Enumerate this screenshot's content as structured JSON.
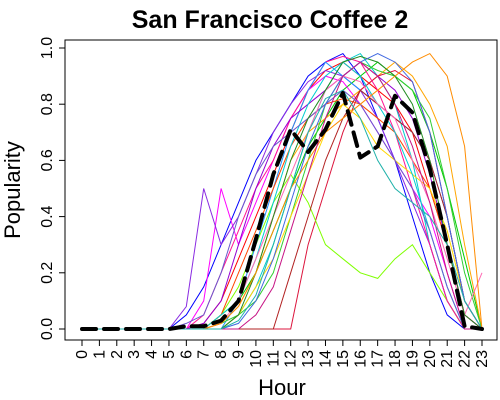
{
  "chart_data": {
    "type": "line",
    "title": "San Francisco Coffee 2",
    "xlabel": "Hour",
    "ylabel": "Popularity",
    "xlim": [
      0,
      23
    ],
    "ylim": [
      0,
      1
    ],
    "x_ticks": [
      "0",
      "1",
      "2",
      "3",
      "4",
      "5",
      "6",
      "7",
      "8",
      "9",
      "10",
      "11",
      "12",
      "13",
      "14",
      "15",
      "16",
      "17",
      "18",
      "19",
      "20",
      "21",
      "22",
      "23"
    ],
    "y_ticks": [
      "0.0",
      "0.2",
      "0.4",
      "0.6",
      "0.8",
      "1.0"
    ],
    "grid": false,
    "legend": "none",
    "x": [
      0,
      1,
      2,
      3,
      4,
      5,
      6,
      7,
      8,
      9,
      10,
      11,
      12,
      13,
      14,
      15,
      16,
      17,
      18,
      19,
      20,
      21,
      22,
      23
    ],
    "mean_series": {
      "style": "dashed",
      "color": "#000000",
      "values": [
        0,
        0,
        0,
        0,
        0,
        0,
        0.01,
        0.01,
        0.03,
        0.1,
        0.32,
        0.55,
        0.71,
        0.63,
        0.71,
        0.84,
        0.61,
        0.65,
        0.83,
        0.77,
        0.57,
        0.3,
        0.01,
        0
      ]
    },
    "series": [
      {
        "color": "#ff0000",
        "values": [
          0,
          0,
          0,
          0,
          0,
          0,
          0,
          0.02,
          0.1,
          0.25,
          0.4,
          0.55,
          0.7,
          0.85,
          0.92,
          0.95,
          0.9,
          0.85,
          0.8,
          0.7,
          0.5,
          0.3,
          0.05,
          0
        ]
      },
      {
        "color": "#0000ff",
        "values": [
          0,
          0,
          0,
          0,
          0,
          0,
          0.05,
          0.15,
          0.3,
          0.45,
          0.6,
          0.7,
          0.8,
          0.9,
          0.95,
          0.98,
          0.9,
          0.75,
          0.6,
          0.4,
          0.2,
          0.05,
          0,
          0
        ]
      },
      {
        "color": "#00cc00",
        "values": [
          0,
          0,
          0,
          0,
          0,
          0,
          0,
          0,
          0.05,
          0.1,
          0.2,
          0.35,
          0.5,
          0.65,
          0.75,
          0.85,
          0.9,
          0.95,
          0.9,
          0.85,
          0.7,
          0.5,
          0.25,
          0
        ]
      },
      {
        "color": "#ff00ff",
        "values": [
          0,
          0,
          0,
          0,
          0,
          0,
          0,
          0.1,
          0.5,
          0.3,
          0.45,
          0.6,
          0.75,
          0.85,
          0.9,
          0.88,
          0.8,
          0.7,
          0.6,
          0.5,
          0.4,
          0.2,
          0,
          0
        ]
      },
      {
        "color": "#ffa500",
        "values": [
          0,
          0,
          0,
          0,
          0,
          0,
          0,
          0,
          0.02,
          0.08,
          0.2,
          0.4,
          0.6,
          0.7,
          0.75,
          0.8,
          0.85,
          0.9,
          0.95,
          0.9,
          0.8,
          0.65,
          0.3,
          0
        ]
      },
      {
        "color": "#00cccc",
        "values": [
          0,
          0,
          0,
          0,
          0,
          0,
          0,
          0,
          0,
          0.05,
          0.15,
          0.3,
          0.5,
          0.7,
          0.85,
          0.95,
          0.98,
          0.9,
          0.8,
          0.6,
          0.3,
          0.1,
          0,
          0
        ]
      },
      {
        "color": "#8a2be2",
        "values": [
          0,
          0,
          0,
          0,
          0,
          0,
          0.08,
          0.5,
          0.3,
          0.4,
          0.55,
          0.7,
          0.8,
          0.88,
          0.92,
          0.9,
          0.85,
          0.75,
          0.6,
          0.45,
          0.3,
          0.1,
          0,
          0
        ]
      },
      {
        "color": "#dc143c",
        "values": [
          0,
          0,
          0,
          0,
          0,
          0,
          0,
          0,
          0,
          0,
          0,
          0,
          0,
          0.3,
          0.5,
          0.7,
          0.85,
          0.9,
          0.92,
          0.88,
          0.7,
          0.4,
          0.1,
          0
        ]
      },
      {
        "color": "#7fff00",
        "values": [
          0,
          0,
          0,
          0,
          0,
          0,
          0,
          0,
          0.05,
          0.15,
          0.3,
          0.45,
          0.55,
          0.45,
          0.3,
          0.25,
          0.2,
          0.18,
          0.25,
          0.3,
          0.2,
          0.1,
          0,
          0
        ]
      },
      {
        "color": "#ff1493",
        "values": [
          0,
          0,
          0,
          0,
          0,
          0,
          0,
          0.05,
          0.2,
          0.35,
          0.5,
          0.6,
          0.75,
          0.85,
          0.95,
          0.97,
          0.95,
          0.85,
          0.7,
          0.5,
          0.3,
          0.1,
          0,
          0
        ]
      },
      {
        "color": "#1e90ff",
        "values": [
          0,
          0,
          0,
          0,
          0,
          0,
          0,
          0,
          0,
          0.1,
          0.3,
          0.5,
          0.7,
          0.85,
          0.95,
          0.9,
          0.85,
          0.8,
          0.75,
          0.7,
          0.6,
          0.4,
          0.1,
          0
        ]
      },
      {
        "color": "#32cd32",
        "values": [
          0,
          0,
          0,
          0,
          0,
          0,
          0,
          0,
          0.02,
          0.05,
          0.1,
          0.2,
          0.4,
          0.6,
          0.8,
          0.9,
          0.95,
          0.92,
          0.9,
          0.85,
          0.75,
          0.5,
          0.2,
          0
        ]
      },
      {
        "color": "#ff4500",
        "values": [
          0,
          0,
          0,
          0,
          0,
          0,
          0,
          0,
          0.05,
          0.2,
          0.35,
          0.5,
          0.65,
          0.75,
          0.8,
          0.82,
          0.8,
          0.75,
          0.7,
          0.6,
          0.5,
          0.3,
          0.05,
          0
        ]
      },
      {
        "color": "#9400d3",
        "values": [
          0,
          0,
          0,
          0,
          0,
          0,
          0,
          0.02,
          0.1,
          0.3,
          0.5,
          0.65,
          0.75,
          0.8,
          0.85,
          0.9,
          0.95,
          0.9,
          0.85,
          0.75,
          0.55,
          0.3,
          0.05,
          0
        ]
      },
      {
        "color": "#ffd700",
        "values": [
          0,
          0,
          0,
          0,
          0,
          0,
          0,
          0,
          0,
          0.05,
          0.15,
          0.25,
          0.4,
          0.55,
          0.7,
          0.8,
          0.75,
          0.65,
          0.6,
          0.55,
          0.5,
          0.35,
          0.1,
          0
        ]
      },
      {
        "color": "#00ced1",
        "values": [
          0,
          0,
          0,
          0,
          0,
          0,
          0,
          0,
          0.05,
          0.1,
          0.25,
          0.45,
          0.65,
          0.8,
          0.9,
          0.95,
          0.9,
          0.8,
          0.7,
          0.55,
          0.35,
          0.15,
          0,
          0
        ]
      },
      {
        "color": "#b22222",
        "values": [
          0,
          0,
          0,
          0,
          0,
          0,
          0,
          0,
          0,
          0,
          0,
          0,
          0.2,
          0.4,
          0.6,
          0.75,
          0.85,
          0.8,
          0.75,
          0.7,
          0.6,
          0.4,
          0.1,
          0
        ]
      },
      {
        "color": "#6a5acd",
        "values": [
          0,
          0,
          0,
          0,
          0,
          0,
          0.02,
          0.05,
          0.2,
          0.4,
          0.55,
          0.65,
          0.7,
          0.75,
          0.8,
          0.85,
          0.8,
          0.7,
          0.6,
          0.5,
          0.35,
          0.15,
          0,
          0
        ]
      },
      {
        "color": "#ff69b4",
        "values": [
          0,
          0,
          0,
          0,
          0,
          0,
          0,
          0,
          0.02,
          0.1,
          0.25,
          0.4,
          0.55,
          0.7,
          0.85,
          0.9,
          0.88,
          0.8,
          0.75,
          0.6,
          0.45,
          0.25,
          0.05,
          0.2
        ]
      },
      {
        "color": "#228b22",
        "values": [
          0,
          0,
          0,
          0,
          0,
          0,
          0,
          0,
          0,
          0.05,
          0.2,
          0.4,
          0.6,
          0.75,
          0.85,
          0.95,
          0.97,
          0.95,
          0.9,
          0.8,
          0.6,
          0.3,
          0.05,
          0
        ]
      },
      {
        "color": "#4169e1",
        "values": [
          0,
          0,
          0,
          0,
          0,
          0,
          0,
          0,
          0,
          0.02,
          0.1,
          0.25,
          0.45,
          0.65,
          0.8,
          0.9,
          0.95,
          0.98,
          0.95,
          0.88,
          0.7,
          0.4,
          0.1,
          0
        ]
      },
      {
        "color": "#ff8c00",
        "values": [
          0,
          0,
          0,
          0,
          0,
          0,
          0,
          0,
          0.02,
          0.08,
          0.2,
          0.35,
          0.5,
          0.6,
          0.7,
          0.75,
          0.8,
          0.85,
          0.9,
          0.95,
          0.98,
          0.9,
          0.65,
          0
        ]
      },
      {
        "color": "#c71585",
        "values": [
          0,
          0,
          0,
          0,
          0,
          0,
          0,
          0,
          0,
          0,
          0.05,
          0.15,
          0.35,
          0.55,
          0.75,
          0.9,
          0.95,
          0.9,
          0.8,
          0.65,
          0.45,
          0.2,
          0,
          0
        ]
      },
      {
        "color": "#20b2aa",
        "values": [
          0,
          0,
          0,
          0,
          0,
          0,
          0,
          0,
          0,
          0.03,
          0.12,
          0.3,
          0.5,
          0.7,
          0.82,
          0.85,
          0.75,
          0.6,
          0.5,
          0.45,
          0.4,
          0.3,
          0.1,
          0
        ]
      }
    ]
  }
}
